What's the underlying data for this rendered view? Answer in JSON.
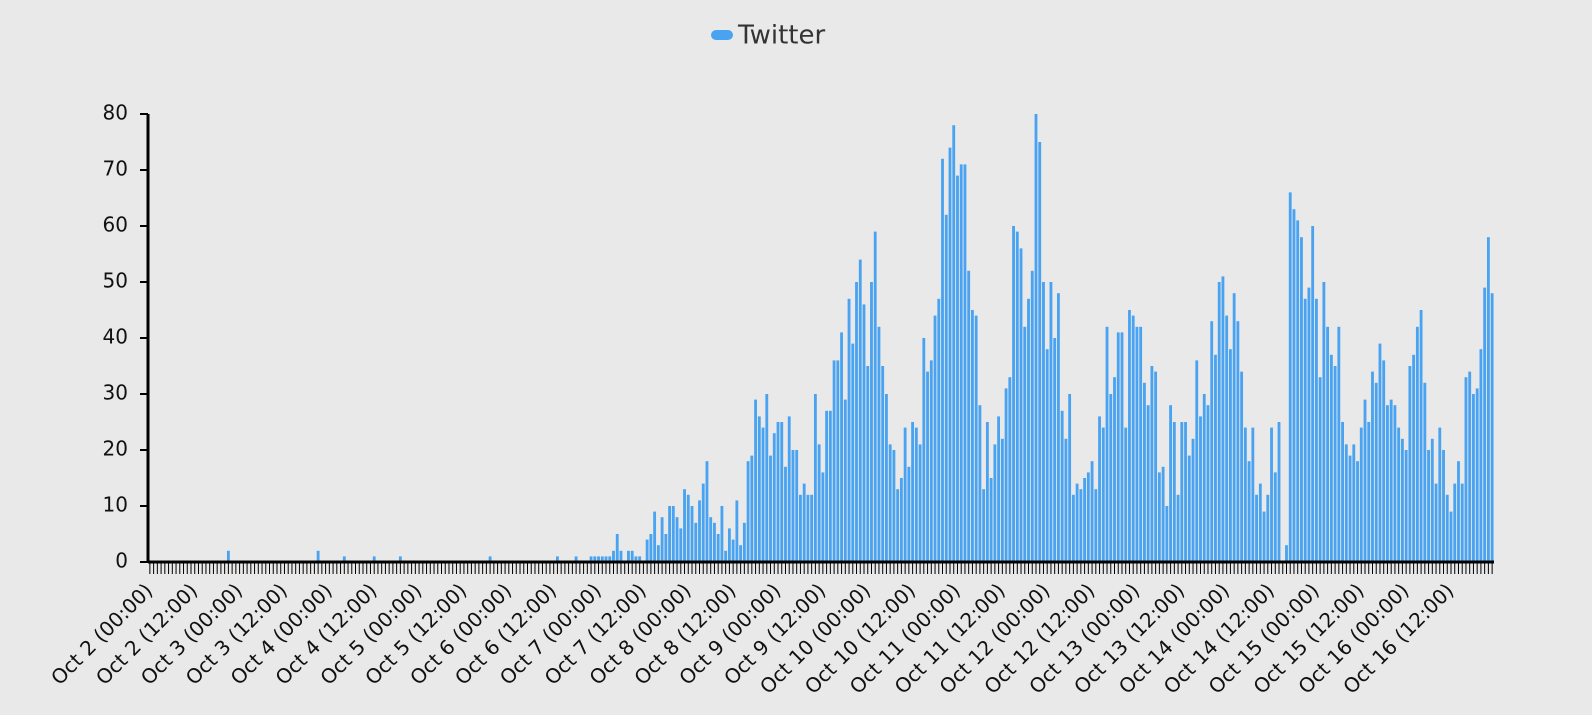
{
  "chart_data": {
    "type": "bar",
    "categories": [
      "Oct 2 (00:00)",
      null,
      null,
      null,
      null,
      null,
      null,
      null,
      null,
      null,
      null,
      null,
      "Oct 2 (12:00)",
      null,
      null,
      null,
      null,
      null,
      null,
      null,
      null,
      null,
      null,
      null,
      "Oct 3 (00:00)",
      null,
      null,
      null,
      null,
      null,
      null,
      null,
      null,
      null,
      null,
      null,
      "Oct 3 (12:00)",
      null,
      null,
      null,
      null,
      null,
      null,
      null,
      null,
      null,
      null,
      null,
      "Oct 4 (00:00)",
      null,
      null,
      null,
      null,
      null,
      null,
      null,
      null,
      null,
      null,
      null,
      "Oct 4 (12:00)",
      null,
      null,
      null,
      null,
      null,
      null,
      null,
      null,
      null,
      null,
      null,
      "Oct 5 (00:00)",
      null,
      null,
      null,
      null,
      null,
      null,
      null,
      null,
      null,
      null,
      null,
      "Oct 5 (12:00)",
      null,
      null,
      null,
      null,
      null,
      null,
      null,
      null,
      null,
      null,
      null,
      "Oct 6 (00:00)",
      null,
      null,
      null,
      null,
      null,
      null,
      null,
      null,
      null,
      null,
      null,
      "Oct 6 (12:00)",
      null,
      null,
      null,
      null,
      null,
      null,
      null,
      null,
      null,
      null,
      null,
      "Oct 7 (00:00)",
      null,
      null,
      null,
      null,
      null,
      null,
      null,
      null,
      null,
      null,
      null,
      "Oct 7 (12:00)",
      null,
      null,
      null,
      null,
      null,
      null,
      null,
      null,
      null,
      null,
      null,
      "Oct 8 (00:00)",
      null,
      null,
      null,
      null,
      null,
      null,
      null,
      null,
      null,
      null,
      null,
      "Oct 8 (12:00)",
      null,
      null,
      null,
      null,
      null,
      null,
      null,
      null,
      null,
      null,
      null,
      "Oct 9 (00:00)",
      null,
      null,
      null,
      null,
      null,
      null,
      null,
      null,
      null,
      null,
      null,
      "Oct 9 (12:00)",
      null,
      null,
      null,
      null,
      null,
      null,
      null,
      null,
      null,
      null,
      null,
      "Oct 10 (00:00)",
      null,
      null,
      null,
      null,
      null,
      null,
      null,
      null,
      null,
      null,
      null,
      "Oct 10 (12:00)",
      null,
      null,
      null,
      null,
      null,
      null,
      null,
      null,
      null,
      null,
      null,
      "Oct 11 (00:00)",
      null,
      null,
      null,
      null,
      null,
      null,
      null,
      null,
      null,
      null,
      null,
      "Oct 11 (12:00)",
      null,
      null,
      null,
      null,
      null,
      null,
      null,
      null,
      null,
      null,
      null,
      "Oct 12 (00:00)",
      null,
      null,
      null,
      null,
      null,
      null,
      null,
      null,
      null,
      null,
      null,
      "Oct 12 (12:00)",
      null,
      null,
      null,
      null,
      null,
      null,
      null,
      null,
      null,
      null,
      null,
      "Oct 13 (00:00)",
      null,
      null,
      null,
      null,
      null,
      null,
      null,
      null,
      null,
      null,
      null,
      "Oct 13 (12:00)",
      null,
      null,
      null,
      null,
      null,
      null,
      null,
      null,
      null,
      null,
      null,
      "Oct 14 (00:00)",
      null,
      null,
      null,
      null,
      null,
      null,
      null,
      null,
      null,
      null,
      null,
      "Oct 14 (12:00)",
      null,
      null,
      null,
      null,
      null,
      null,
      null,
      null,
      null,
      null,
      null,
      "Oct 15 (00:00)",
      null,
      null,
      null,
      null,
      null,
      null,
      null,
      null,
      null,
      null,
      null,
      "Oct 15 (12:00)",
      null,
      null,
      null,
      null,
      null,
      null,
      null,
      null,
      null,
      null,
      null,
      "Oct 16 (00:00)",
      null,
      null,
      null,
      null,
      null,
      null,
      null,
      null,
      null,
      null,
      null,
      "Oct 16 (12:00)",
      null,
      null,
      null,
      null,
      null,
      null,
      null,
      null,
      null,
      null,
      null
    ],
    "series": [
      {
        "name": "Twitter",
        "color": "#4aa3f0",
        "values": [
          0,
          0,
          0,
          0,
          0,
          0,
          0,
          0,
          0,
          0,
          0,
          0,
          0,
          0,
          0,
          0,
          0,
          0,
          0,
          0,
          0,
          2,
          0,
          0,
          0,
          0,
          0,
          0,
          0,
          0,
          0,
          0,
          0,
          0,
          0,
          0,
          0,
          0,
          0,
          0,
          0,
          0,
          0,
          0,
          0,
          2,
          0,
          0,
          0,
          0,
          0,
          0,
          1,
          0,
          0,
          0,
          0,
          0,
          0,
          0,
          1,
          0,
          0,
          0,
          0,
          0,
          0,
          1,
          0,
          0,
          0,
          0,
          0,
          0,
          0,
          0,
          0,
          0,
          0,
          0,
          0,
          0,
          0,
          0,
          0,
          0,
          0,
          0,
          0,
          0,
          0,
          1,
          0,
          0,
          0,
          0,
          0,
          0,
          0,
          0,
          0,
          0,
          0,
          0,
          0,
          0,
          0,
          0,
          0,
          1,
          0,
          0,
          0,
          0,
          1,
          0,
          0,
          0,
          1,
          1,
          1,
          1,
          1,
          1,
          2,
          5,
          2,
          0,
          2,
          2,
          1,
          1,
          0,
          4,
          5,
          9,
          3,
          8,
          5,
          10,
          10,
          8,
          6,
          13,
          12,
          10,
          7,
          11,
          14,
          18,
          8,
          7,
          5,
          10,
          2,
          6,
          4,
          11,
          3,
          7,
          18,
          19,
          29,
          26,
          24,
          30,
          19,
          23,
          25,
          25,
          17,
          26,
          20,
          20,
          12,
          14,
          12,
          12,
          30,
          21,
          16,
          27,
          27,
          36,
          36,
          41,
          29,
          47,
          39,
          50,
          54,
          46,
          35,
          50,
          59,
          42,
          35,
          30,
          21,
          20,
          13,
          15,
          24,
          17,
          25,
          24,
          21,
          40,
          34,
          36,
          44,
          47,
          72,
          62,
          74,
          78,
          69,
          71,
          71,
          52,
          45,
          44,
          28,
          13,
          25,
          15,
          21,
          26,
          22,
          31,
          33,
          60,
          59,
          56,
          42,
          47,
          52,
          80,
          75,
          50,
          38,
          50,
          40,
          48,
          27,
          22,
          30,
          12,
          14,
          13,
          15,
          16,
          18,
          13,
          26,
          24,
          42,
          30,
          33,
          41,
          41,
          24,
          45,
          44,
          42,
          42,
          32,
          28,
          35,
          34,
          16,
          17,
          10,
          28,
          25,
          12,
          25,
          25,
          19,
          22,
          36,
          26,
          30,
          28,
          43,
          37,
          50,
          51,
          44,
          38,
          48,
          43,
          34,
          24,
          18,
          24,
          12,
          14,
          9,
          12,
          24,
          16,
          25,
          0,
          3,
          66,
          63,
          61,
          58,
          47,
          49,
          60,
          47,
          33,
          50,
          42,
          37,
          35,
          42,
          25,
          21,
          19,
          21,
          18,
          24,
          29,
          25,
          34,
          32,
          39,
          36,
          28,
          29,
          28,
          24,
          22,
          20,
          35,
          37,
          42,
          45,
          32,
          20,
          22,
          14,
          24,
          20,
          12,
          9,
          14,
          18,
          14,
          33,
          34,
          30,
          31,
          38,
          49,
          58,
          48
        ]
      }
    ],
    "ylim": [
      0,
      80
    ],
    "yticks": [
      0,
      10,
      20,
      30,
      40,
      50,
      60,
      70,
      80
    ],
    "legend": "top"
  }
}
